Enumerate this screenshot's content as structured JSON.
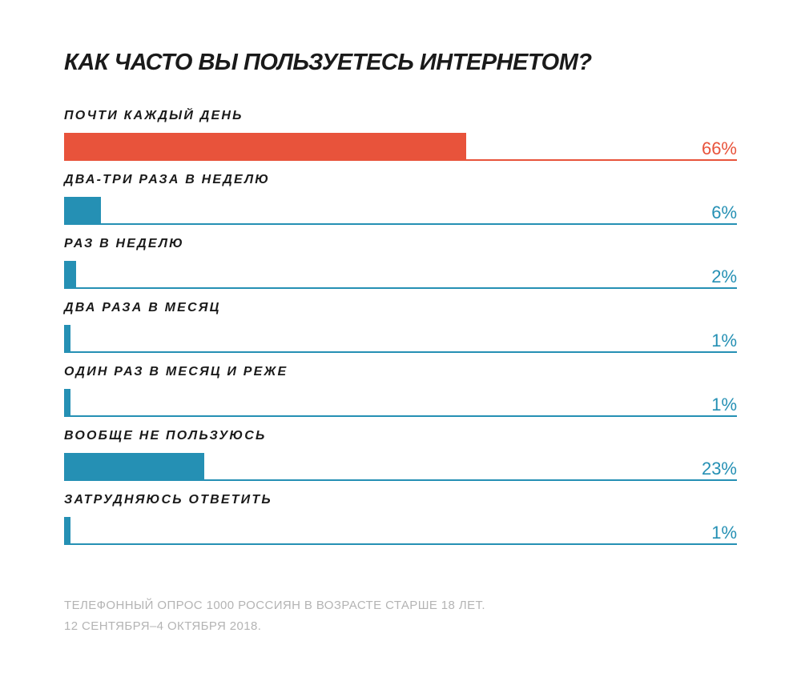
{
  "chart_data": {
    "type": "bar",
    "orientation": "horizontal",
    "title": "КАК ЧАСТО ВЫ ПОЛЬЗУЕТЕСЬ ИНТЕРНЕТОМ?",
    "xlim": [
      0,
      100
    ],
    "grid": false,
    "categories": [
      "ПОЧТИ КАЖДЫЙ ДЕНЬ",
      "ДВА-ТРИ РАЗА В НЕДЕЛЮ",
      "РАЗ В НЕДЕЛЮ",
      "ДВА РАЗА В МЕСЯЦ",
      "ОДИН РАЗ В МЕСЯЦ И РЕЖЕ",
      "ВООБЩЕ НЕ ПОЛЬЗУЮСЬ",
      "ЗАТРУДНЯЮСЬ ОТВЕТИТЬ"
    ],
    "values": [
      66,
      6,
      2,
      1,
      1,
      23,
      1
    ],
    "value_labels": [
      "66%",
      "6%",
      "2%",
      "1%",
      "1%",
      "23%",
      "1%"
    ],
    "colors": [
      "#e8533b",
      "#2590b4",
      "#2590b4",
      "#2590b4",
      "#2590b4",
      "#2590b4",
      "#2590b4"
    ],
    "highlight_color": "#e8533b",
    "default_color": "#2590b4"
  },
  "source": {
    "line1": "ТЕЛЕФОННЫЙ ОПРОС 1000 РОССИЯН В ВОЗРАСТЕ СТАРШЕ 18 ЛЕТ.",
    "line2": "12 СЕНТЯБРЯ–4 ОКТЯБРЯ 2018."
  }
}
